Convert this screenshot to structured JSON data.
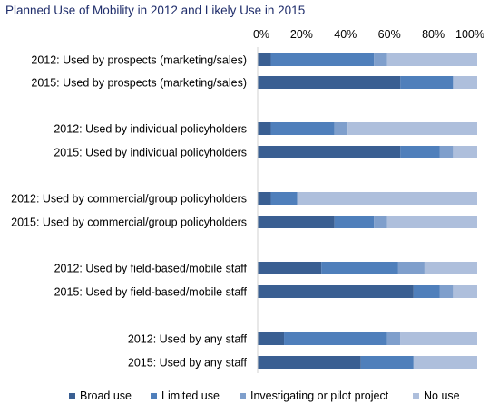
{
  "chart_data": {
    "type": "bar",
    "orientation": "horizontal",
    "stacked": true,
    "title": "Planned Use of Mobility in 2012 and Likely Use in 2015",
    "xlabel": "",
    "ylabel": "",
    "xlim": [
      0,
      100
    ],
    "x_ticks": [
      "0%",
      "20%",
      "40%",
      "60%",
      "80%",
      "100%"
    ],
    "grid": false,
    "legend_position": "bottom",
    "categories": [
      "2012: Used by prospects (marketing/sales)",
      "2015: Used by prospects (marketing/sales)",
      "2012: Used by individual policyholders",
      "2015: Used by individual policyholders",
      "2012: Used by commercial/group policyholders",
      "2015: Used by commercial/group policyholders",
      "2012: Used by field-based/mobile staff",
      "2015: Used by field-based/mobile staff",
      "2012: Used by any staff",
      "2015: Used by any staff"
    ],
    "series": [
      {
        "name": "Broad use",
        "color": "#3a5f92",
        "values": [
          6,
          65,
          6,
          65,
          6,
          35,
          29,
          71,
          12,
          47
        ]
      },
      {
        "name": "Limited use",
        "color": "#4f7fbb",
        "values": [
          47,
          24,
          29,
          18,
          12,
          18,
          35,
          12,
          47,
          24
        ]
      },
      {
        "name": "Investigating or pilot project",
        "color": "#7f9fcc",
        "values": [
          6,
          0,
          6,
          6,
          0,
          6,
          12,
          6,
          6,
          0
        ]
      },
      {
        "name": "No use",
        "color": "#aebfdc",
        "values": [
          41,
          11,
          59,
          11,
          82,
          41,
          24,
          11,
          35,
          29
        ]
      }
    ]
  }
}
